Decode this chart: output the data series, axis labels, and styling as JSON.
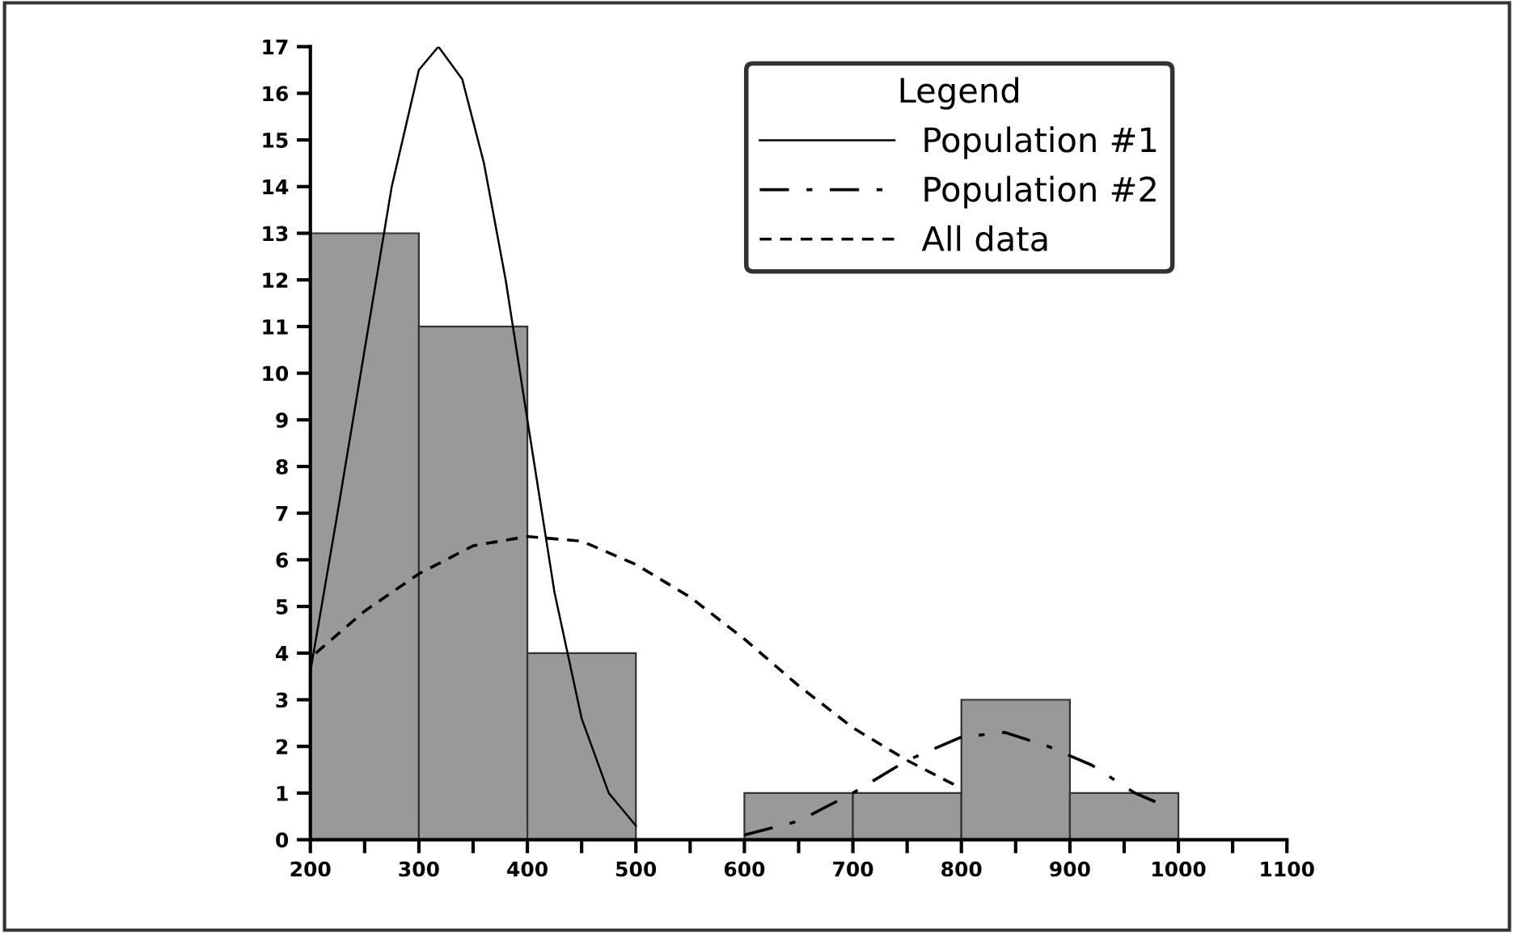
{
  "chart_data": {
    "type": "histogram",
    "legend_title": "Legend",
    "legend": "top right",
    "grid": false,
    "bins": [
      200,
      300,
      400,
      500,
      600,
      700,
      800,
      900,
      1000
    ],
    "values": [
      13,
      11,
      4,
      0,
      1,
      1,
      3,
      1
    ],
    "color": "#999999",
    "xlim": [
      200,
      1100
    ],
    "ylim": [
      0,
      17
    ],
    "xticks": [
      200,
      {
        "value": 250,
        "label": null
      },
      300,
      {
        "value": 350,
        "label": null
      },
      400,
      {
        "value": 450,
        "label": null
      },
      500,
      {
        "value": 550,
        "label": null
      },
      600,
      {
        "value": 650,
        "label": null
      },
      700,
      {
        "value": 750,
        "label": null
      },
      800,
      {
        "value": 850,
        "label": null
      },
      900,
      {
        "value": 950,
        "label": null
      },
      1000,
      {
        "value": 1050,
        "label": null
      },
      1100
    ],
    "yticks": [
      0,
      1,
      2,
      3,
      4,
      5,
      6,
      7,
      8,
      9,
      10,
      11,
      12,
      13,
      14,
      15,
      16,
      17
    ],
    "series": [
      {
        "type": "line",
        "name": "Population #1",
        "color": "#000000",
        "line_style": "solid",
        "x": [
          200,
          225,
          250,
          275,
          300,
          318,
          340,
          360,
          380,
          400,
          425,
          450,
          475,
          500
        ],
        "values": [
          3.6,
          7,
          10.5,
          14,
          16.5,
          17,
          16.3,
          14.5,
          12,
          9,
          5.3,
          2.6,
          1.0,
          0.3
        ]
      },
      {
        "type": "line",
        "name": "Population #2",
        "color": "#000000",
        "line_style": "dashdot",
        "x": [
          600,
          650,
          700,
          750,
          800,
          840,
          880,
          920,
          960,
          980
        ],
        "values": [
          0.1,
          0.4,
          1.0,
          1.7,
          2.2,
          2.3,
          2.0,
          1.6,
          1.0,
          0.8
        ]
      },
      {
        "type": "line",
        "name": "All data",
        "color": "#000000",
        "line_style": "dashed",
        "x": [
          205,
          250,
          300,
          350,
          400,
          450,
          500,
          550,
          600,
          650,
          700,
          750,
          800
        ],
        "values": [
          4.0,
          4.9,
          5.7,
          6.3,
          6.5,
          6.4,
          5.9,
          5.2,
          4.3,
          3.3,
          2.4,
          1.7,
          1.1
        ]
      }
    ]
  }
}
